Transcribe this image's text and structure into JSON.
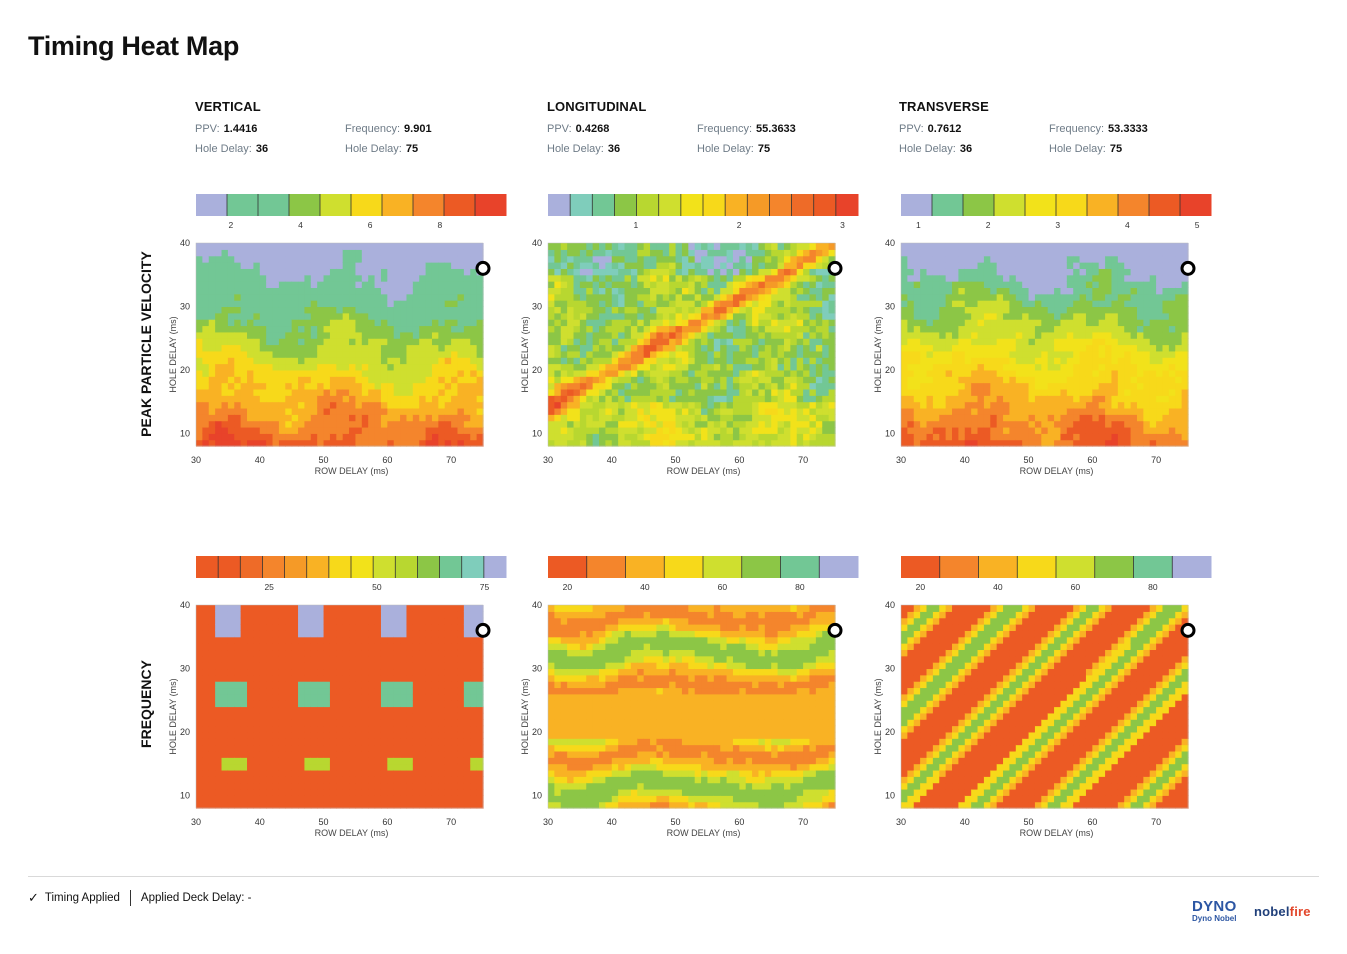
{
  "page": {
    "title": "Timing Heat Map",
    "rows": [
      "PEAK PARTICLE VELOCITY",
      "FREQUENCY"
    ]
  },
  "panels": [
    {
      "name": "VERTICAL",
      "ppv_label": "PPV:",
      "ppv": "1.4416",
      "freq_label": "Frequency:",
      "freq": "9.901",
      "hd1_label": "Hole Delay:",
      "hd1": "36",
      "hd2_label": "Hole Delay:",
      "hd2": "75"
    },
    {
      "name": "LONGITUDINAL",
      "ppv_label": "PPV:",
      "ppv": "0.4268",
      "freq_label": "Frequency:",
      "freq": "55.3633",
      "hd1_label": "Hole Delay:",
      "hd1": "36",
      "hd2_label": "Hole Delay:",
      "hd2": "75"
    },
    {
      "name": "TRANSVERSE",
      "ppv_label": "PPV:",
      "ppv": "0.7612",
      "freq_label": "Frequency:",
      "freq": "53.3333",
      "hd1_label": "Hole Delay:",
      "hd1": "36",
      "hd2_label": "Hole Delay:",
      "hd2": "75"
    }
  ],
  "chart_data": [
    {
      "type": "heatmap",
      "row": "PEAK PARTICLE VELOCITY",
      "component": "VERTICAL",
      "xlabel": "ROW DELAY (ms)",
      "ylabel": "HOLE DELAY (ms)",
      "xlim": [
        30,
        75
      ],
      "ylim": [
        8,
        40
      ],
      "xticks": [
        30,
        40,
        50,
        60,
        70
      ],
      "yticks": [
        10,
        20,
        30,
        40
      ],
      "colorbar_range": [
        1,
        9.9
      ],
      "colorbar_ticks": [
        2,
        4,
        6,
        8
      ],
      "colorbar_colors": [
        "#aab0dc",
        "#72c795",
        "#72c795",
        "#8cc646",
        "#cfdf2f",
        "#f7d91a",
        "#f9b224",
        "#f4852c",
        "#ec5a24",
        "#e8432a"
      ],
      "marker": {
        "x": 75,
        "y": 36
      },
      "pattern": "gradient",
      "high_at": "bottom-left"
    },
    {
      "type": "heatmap",
      "row": "PEAK PARTICLE VELOCITY",
      "component": "LONGITUDINAL",
      "xlabel": "ROW DELAY (ms)",
      "ylabel": "HOLE DELAY (ms)",
      "xlim": [
        30,
        75
      ],
      "ylim": [
        8,
        40
      ],
      "xticks": [
        30,
        40,
        50,
        60,
        70
      ],
      "yticks": [
        10,
        20,
        30,
        40
      ],
      "colorbar_range": [
        0.15,
        3.15
      ],
      "colorbar_ticks": [
        1,
        2,
        3
      ],
      "colorbar_colors": [
        "#aab0dc",
        "#7fcdbb",
        "#72c795",
        "#8cc646",
        "#b8d730",
        "#cfdf2f",
        "#f2e21a",
        "#f7d91a",
        "#f9b224",
        "#f59a27",
        "#f4852c",
        "#ee6b28",
        "#ec5a24",
        "#e8432a"
      ],
      "marker": {
        "x": 75,
        "y": 36
      },
      "pattern": "noisy",
      "high_at": "diagonal ridges"
    },
    {
      "type": "heatmap",
      "row": "PEAK PARTICLE VELOCITY",
      "component": "TRANSVERSE",
      "xlabel": "ROW DELAY (ms)",
      "ylabel": "HOLE DELAY (ms)",
      "xlim": [
        30,
        75
      ],
      "ylim": [
        8,
        40
      ],
      "xticks": [
        30,
        40,
        50,
        60,
        70
      ],
      "yticks": [
        10,
        20,
        30,
        40
      ],
      "colorbar_range": [
        0.75,
        5.2
      ],
      "colorbar_ticks": [
        1,
        2,
        3,
        4,
        5
      ],
      "colorbar_colors": [
        "#aab0dc",
        "#72c795",
        "#8cc646",
        "#cfdf2f",
        "#f2e21a",
        "#f7d91a",
        "#f9b224",
        "#f4852c",
        "#ec5a24",
        "#e8432a"
      ],
      "marker": {
        "x": 75,
        "y": 36
      },
      "pattern": "gradient",
      "high_at": "bottom-left"
    },
    {
      "type": "heatmap",
      "row": "FREQUENCY",
      "component": "VERTICAL",
      "xlabel": "ROW DELAY (ms)",
      "ylabel": "HOLE DELAY (ms)",
      "xlim": [
        30,
        75
      ],
      "ylim": [
        8,
        40
      ],
      "xticks": [
        30,
        40,
        50,
        60,
        70
      ],
      "yticks": [
        10,
        20,
        30,
        40
      ],
      "colorbar_range": [
        8,
        80
      ],
      "colorbar_ticks": [
        25,
        50,
        75
      ],
      "colorbar_colors": [
        "#ec5a24",
        "#ec5a24",
        "#ee6b28",
        "#f4852c",
        "#f59a27",
        "#f9b224",
        "#f7d91a",
        "#f2e21a",
        "#cfdf2f",
        "#b8d730",
        "#8cc646",
        "#72c795",
        "#7fcdbb",
        "#aab0dc"
      ],
      "marker": {
        "x": 75,
        "y": 36
      },
      "pattern": "patches"
    },
    {
      "type": "heatmap",
      "row": "FREQUENCY",
      "component": "LONGITUDINAL",
      "xlabel": "ROW DELAY (ms)",
      "ylabel": "HOLE DELAY (ms)",
      "xlim": [
        30,
        75
      ],
      "ylim": [
        8,
        40
      ],
      "xticks": [
        30,
        40,
        50,
        60,
        70
      ],
      "yticks": [
        10,
        20,
        30,
        40
      ],
      "colorbar_range": [
        15,
        95
      ],
      "colorbar_ticks": [
        20,
        40,
        60,
        80
      ],
      "colorbar_colors": [
        "#ec5a24",
        "#f4852c",
        "#f9b224",
        "#f7d91a",
        "#cfdf2f",
        "#8cc646",
        "#72c795",
        "#aab0dc"
      ],
      "marker": {
        "x": 75,
        "y": 36
      },
      "pattern": "bands"
    },
    {
      "type": "heatmap",
      "row": "FREQUENCY",
      "component": "TRANSVERSE",
      "xlabel": "ROW DELAY (ms)",
      "ylabel": "HOLE DELAY (ms)",
      "xlim": [
        30,
        75
      ],
      "ylim": [
        8,
        40
      ],
      "xticks": [
        30,
        40,
        50,
        60,
        70
      ],
      "yticks": [
        10,
        20,
        30,
        40
      ],
      "colorbar_range": [
        15,
        95
      ],
      "colorbar_ticks": [
        20,
        40,
        60,
        80
      ],
      "colorbar_colors": [
        "#ec5a24",
        "#f4852c",
        "#f9b224",
        "#f7d91a",
        "#cfdf2f",
        "#8cc646",
        "#72c795",
        "#aab0dc"
      ],
      "marker": {
        "x": 75,
        "y": 36
      },
      "pattern": "diagonal"
    }
  ],
  "footer": {
    "check_icon": "check-icon",
    "timing_applied": "Timing Applied",
    "deck_delay": "Applied Deck Delay: -"
  },
  "logos": {
    "dyno": "DYNO",
    "dyno_sub": "Dyno Nobel",
    "nobel": "nobel",
    "fire": "fire"
  }
}
